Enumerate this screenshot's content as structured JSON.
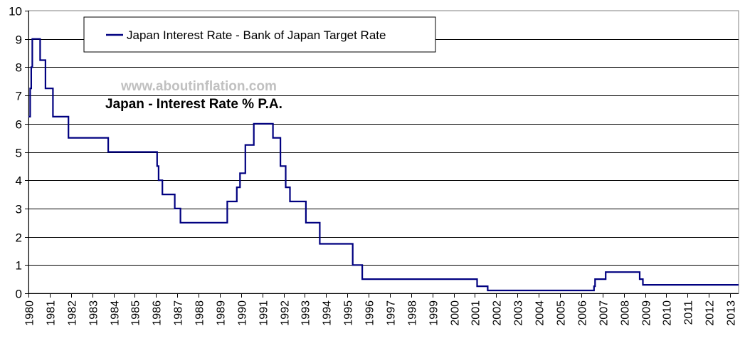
{
  "chart_data": {
    "type": "line",
    "title": "Japan - Interest Rate % P.A.",
    "watermark": "www.aboutinflation.com",
    "xlabel": "",
    "ylabel": "",
    "xlim": [
      1980,
      2013.4
    ],
    "ylim": [
      0,
      10
    ],
    "grid": true,
    "legend_position": "top-left (inside plot)",
    "y_ticks": [
      0,
      1,
      2,
      3,
      4,
      5,
      6,
      7,
      8,
      9,
      10
    ],
    "x_ticks": [
      "1980",
      "1981",
      "1982",
      "1983",
      "1984",
      "1985",
      "1986",
      "1987",
      "1988",
      "1989",
      "1990",
      "1991",
      "1992",
      "1993",
      "1994",
      "1995",
      "1996",
      "1997",
      "1998",
      "1999",
      "2000",
      "2001",
      "2002",
      "2003",
      "2004",
      "2005",
      "2006",
      "2007",
      "2008",
      "2009",
      "2010",
      "2011",
      "2012",
      "2013"
    ],
    "series": [
      {
        "name": "Japan Interest Rate - Bank of Japan Target Rate",
        "color": "#000080",
        "step": true,
        "points": [
          [
            1980.0,
            6.25
          ],
          [
            1980.08,
            7.25
          ],
          [
            1980.13,
            8.0
          ],
          [
            1980.18,
            9.0
          ],
          [
            1980.55,
            8.25
          ],
          [
            1980.8,
            7.25
          ],
          [
            1981.15,
            6.25
          ],
          [
            1981.88,
            5.5
          ],
          [
            1983.75,
            5.0
          ],
          [
            1986.05,
            4.5
          ],
          [
            1986.12,
            4.0
          ],
          [
            1986.3,
            3.5
          ],
          [
            1986.88,
            3.0
          ],
          [
            1987.15,
            2.5
          ],
          [
            1989.35,
            3.25
          ],
          [
            1989.8,
            3.75
          ],
          [
            1989.95,
            4.25
          ],
          [
            1990.2,
            5.25
          ],
          [
            1990.6,
            6.0
          ],
          [
            1991.5,
            5.5
          ],
          [
            1991.85,
            4.5
          ],
          [
            1992.1,
            3.75
          ],
          [
            1992.3,
            3.25
          ],
          [
            1993.05,
            2.5
          ],
          [
            1993.7,
            1.75
          ],
          [
            1995.25,
            1.0
          ],
          [
            1995.7,
            0.5
          ],
          [
            2001.1,
            0.25
          ],
          [
            2001.6,
            0.1
          ],
          [
            2006.6,
            0.25
          ],
          [
            2006.65,
            0.5
          ],
          [
            2007.15,
            0.75
          ],
          [
            2008.75,
            0.5
          ],
          [
            2008.9,
            0.3
          ],
          [
            2013.4,
            0.3
          ]
        ]
      }
    ]
  },
  "legend": {
    "label": "Japan Interest Rate - Bank of Japan Target Rate"
  },
  "annotations": {
    "watermark": "www.aboutinflation.com",
    "title": "Japan - Interest Rate % P.A."
  },
  "colors": {
    "line": "#000080",
    "grid": "#000000",
    "plot_border": "#808080",
    "watermark": "#c0c0c0"
  }
}
